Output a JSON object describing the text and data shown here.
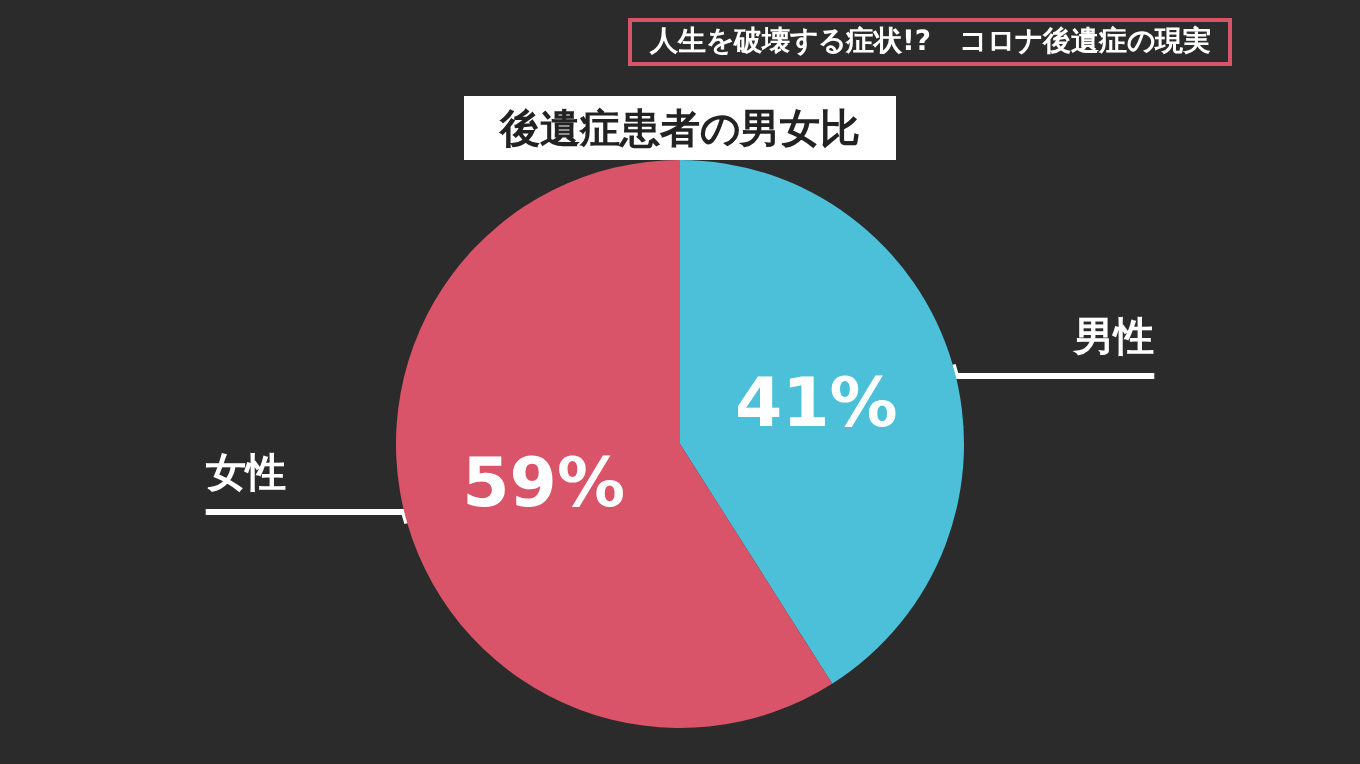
{
  "chart_data": {
    "type": "pie",
    "title": "後遺症患者の男女比",
    "subtitle": "人生を破壊する症状!?　コロナ後遺症の現実",
    "categories": [
      "男性",
      "女性"
    ],
    "values": [
      41,
      59
    ],
    "colors": [
      "#4cc0d9",
      "#da5469"
    ],
    "value_labels": [
      "41%",
      "59%"
    ],
    "legend": false
  }
}
